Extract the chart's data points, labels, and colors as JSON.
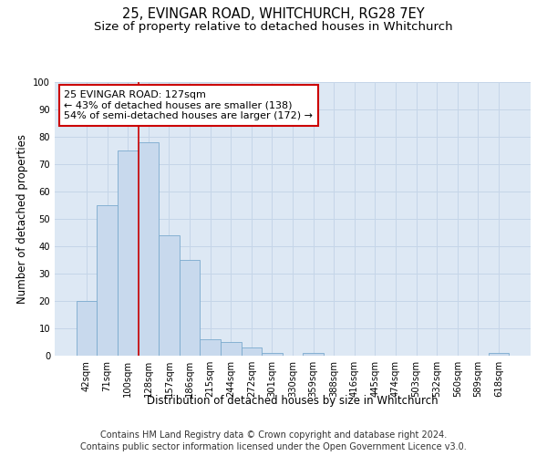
{
  "title": "25, EVINGAR ROAD, WHITCHURCH, RG28 7EY",
  "subtitle": "Size of property relative to detached houses in Whitchurch",
  "xlabel": "Distribution of detached houses by size in Whitchurch",
  "ylabel": "Number of detached properties",
  "categories": [
    "42sqm",
    "71sqm",
    "100sqm",
    "128sqm",
    "157sqm",
    "186sqm",
    "215sqm",
    "244sqm",
    "272sqm",
    "301sqm",
    "330sqm",
    "359sqm",
    "388sqm",
    "416sqm",
    "445sqm",
    "474sqm",
    "503sqm",
    "532sqm",
    "560sqm",
    "589sqm",
    "618sqm"
  ],
  "values": [
    20,
    55,
    75,
    78,
    44,
    35,
    6,
    5,
    3,
    1,
    0,
    1,
    0,
    0,
    0,
    0,
    0,
    0,
    0,
    0,
    1
  ],
  "bar_color": "#c8d9ed",
  "bar_edge_color": "#7aaace",
  "bar_linewidth": 0.6,
  "vline_color": "#cc0000",
  "vline_linewidth": 1.2,
  "vline_position": 2.5,
  "annotation_text": "25 EVINGAR ROAD: 127sqm\n← 43% of detached houses are smaller (138)\n54% of semi-detached houses are larger (172) →",
  "annotation_box_edgecolor": "#cc0000",
  "annotation_box_facecolor": "#ffffff",
  "annotation_fontsize": 8.0,
  "ylim": [
    0,
    100
  ],
  "yticks": [
    0,
    10,
    20,
    30,
    40,
    50,
    60,
    70,
    80,
    90,
    100
  ],
  "grid_color": "#c5d5e8",
  "background_color": "#dde8f4",
  "footer_line1": "Contains HM Land Registry data © Crown copyright and database right 2024.",
  "footer_line2": "Contains public sector information licensed under the Open Government Licence v3.0.",
  "title_fontsize": 10.5,
  "subtitle_fontsize": 9.5,
  "xlabel_fontsize": 8.5,
  "ylabel_fontsize": 8.5,
  "tick_fontsize": 7.2,
  "footer_fontsize": 7.0
}
